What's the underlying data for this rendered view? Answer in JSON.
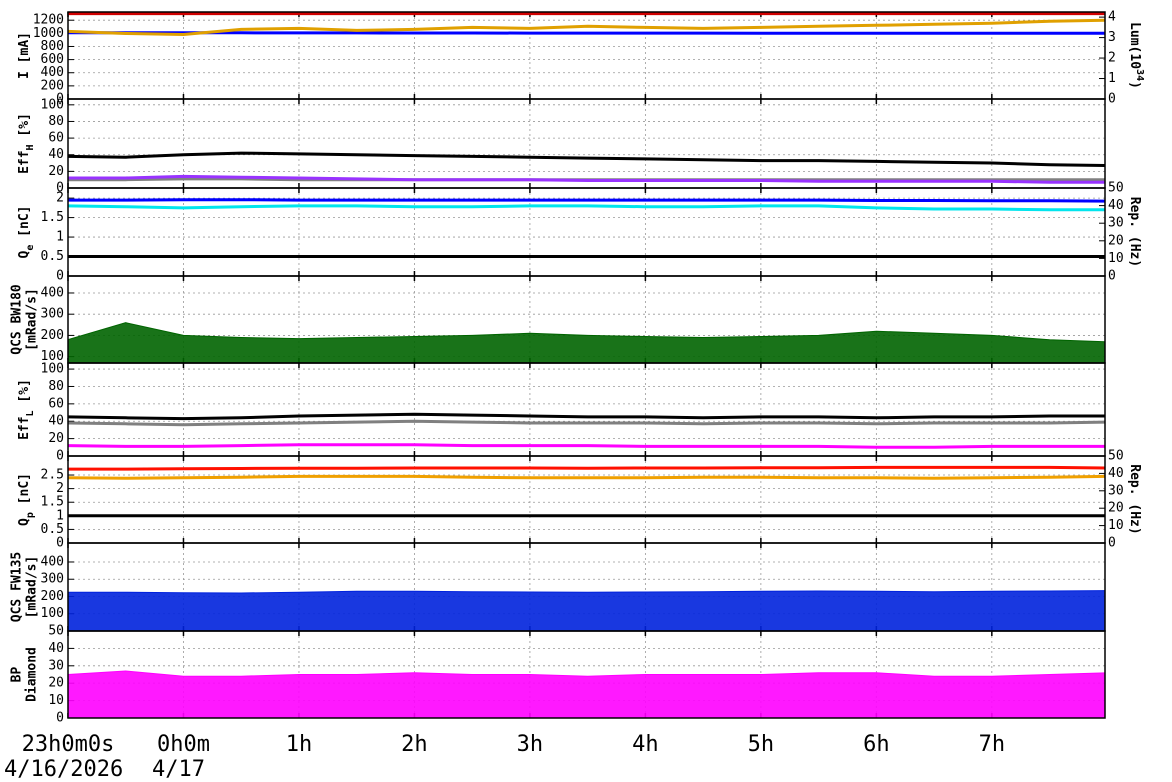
{
  "chart_data": [
    {
      "type": "line",
      "ylabel": [
        [
          {
            "text": "I [mA]"
          }
        ]
      ],
      "y2label": [
        [
          {
            "text": "Lum(10"
          },
          {
            "text": "34",
            "shift": "super"
          },
          {
            "text": ")"
          }
        ]
      ],
      "x": [
        0,
        0.5,
        1,
        1.5,
        2,
        2.5,
        3,
        3.5,
        4,
        4.5,
        5,
        5.5,
        6,
        6.5,
        7,
        7.5,
        8,
        8.5,
        9
      ],
      "xlim": [
        0,
        8.98
      ],
      "xticks": [
        0,
        1,
        2,
        3,
        4,
        5,
        6,
        7,
        8
      ],
      "ylim": [
        0,
        1325
      ],
      "yticks": [
        0,
        200,
        400,
        600,
        800,
        1000,
        1200
      ],
      "y2lim": [
        0,
        4.25
      ],
      "y2ticks": [
        0,
        1,
        2,
        3,
        4
      ],
      "grid": true,
      "series": [
        {
          "color": "#d00000",
          "values": [
            1300,
            1300,
            1300,
            1300,
            1300,
            1300,
            1300,
            1300,
            1300,
            1300,
            1300,
            1300,
            1300,
            1300,
            1300,
            1300,
            1300,
            1300,
            1300
          ]
        },
        {
          "color": "#0000ff",
          "values": [
            1010,
            1010,
            1008,
            1008,
            1006,
            1006,
            1005,
            1005,
            1004,
            1004,
            1003,
            1003,
            1002,
            1002,
            1001,
            1001,
            1000,
            1000,
            1000
          ]
        },
        {
          "color": "#e0a000",
          "axis": "y2",
          "values": [
            3.3,
            3.2,
            3.15,
            3.4,
            3.45,
            3.35,
            3.4,
            3.5,
            3.45,
            3.55,
            3.5,
            3.45,
            3.5,
            3.55,
            3.6,
            3.65,
            3.7,
            3.8,
            3.85
          ]
        }
      ]
    },
    {
      "type": "line",
      "ylabel": [
        [
          {
            "text": "Eff"
          },
          {
            "text": "H",
            "shift": "sub"
          },
          {
            "text": " [%]"
          }
        ]
      ],
      "x": [
        0,
        0.5,
        1,
        1.5,
        2,
        2.5,
        3,
        3.5,
        4,
        4.5,
        5,
        5.5,
        6,
        6.5,
        7,
        7.5,
        8,
        8.5,
        9
      ],
      "xlim": [
        0,
        8.98
      ],
      "xticks": [
        0,
        1,
        2,
        3,
        4,
        5,
        6,
        7,
        8
      ],
      "ylim": [
        0,
        107
      ],
      "yticks": [
        0,
        20,
        40,
        60,
        80,
        100
      ],
      "grid": true,
      "series": [
        {
          "color": "#000000",
          "values": [
            38,
            37,
            40,
            42,
            41,
            40,
            39,
            38,
            37,
            36,
            35,
            34,
            33,
            33,
            32,
            31,
            30,
            28,
            27
          ]
        },
        {
          "color": "#808080",
          "values": [
            10,
            10,
            11,
            11,
            10,
            10,
            10,
            10,
            10,
            10,
            10,
            10,
            10,
            10,
            10,
            10,
            10,
            10,
            10
          ]
        },
        {
          "color": "#9933ff",
          "values": [
            12,
            12,
            14,
            13,
            12,
            11,
            10,
            10,
            10,
            9,
            9,
            9,
            9,
            8,
            8,
            8,
            8,
            7,
            7
          ]
        }
      ]
    },
    {
      "type": "line",
      "ylabel": [
        [
          {
            "text": "Q"
          },
          {
            "text": "e",
            "shift": "sub"
          },
          {
            "text": " [nC]"
          }
        ]
      ],
      "y2label": [
        [
          {
            "text": "Rep. (Hz)"
          }
        ]
      ],
      "x": [
        0,
        0.5,
        1,
        1.5,
        2,
        2.5,
        3,
        3.5,
        4,
        4.5,
        5,
        5.5,
        6,
        6.5,
        7,
        7.5,
        8,
        8.5,
        9
      ],
      "xlim": [
        0,
        8.98
      ],
      "xticks": [
        0,
        1,
        2,
        3,
        4,
        5,
        6,
        7,
        8
      ],
      "ylim": [
        0,
        2.26
      ],
      "yticks": [
        0,
        0.5,
        1,
        1.5,
        2
      ],
      "y2lim": [
        0,
        50
      ],
      "y2ticks": [
        0,
        10,
        20,
        30,
        40,
        50
      ],
      "grid": true,
      "series": [
        {
          "color": "#000000",
          "values": [
            0.5,
            0.5,
            0.5,
            0.5,
            0.5,
            0.5,
            0.5,
            0.5,
            0.5,
            0.5,
            0.5,
            0.5,
            0.5,
            0.5,
            0.5,
            0.5,
            0.5,
            0.5,
            0.5
          ]
        },
        {
          "color": "#00e5ee",
          "values": [
            1.8,
            1.78,
            1.75,
            1.78,
            1.8,
            1.8,
            1.78,
            1.78,
            1.8,
            1.8,
            1.78,
            1.78,
            1.8,
            1.8,
            1.75,
            1.72,
            1.72,
            1.7,
            1.7
          ]
        },
        {
          "color": "#0000ff",
          "values": [
            1.95,
            1.95,
            1.96,
            1.96,
            1.95,
            1.95,
            1.95,
            1.95,
            1.95,
            1.95,
            1.95,
            1.95,
            1.95,
            1.95,
            1.94,
            1.94,
            1.93,
            1.93,
            1.92
          ]
        }
      ]
    },
    {
      "type": "area",
      "ylabel": [
        [
          {
            "text": "QCS BW180"
          }
        ],
        [
          {
            "text": "[mRad/s]"
          }
        ]
      ],
      "x": [
        0,
        0.5,
        1,
        1.5,
        2,
        2.5,
        3,
        3.5,
        4,
        4.5,
        5,
        5.5,
        6,
        6.5,
        7,
        7.5,
        8,
        8.5,
        9
      ],
      "xlim": [
        0,
        8.98
      ],
      "xticks": [
        0,
        1,
        2,
        3,
        4,
        5,
        6,
        7,
        8
      ],
      "ylim": [
        70,
        480
      ],
      "yticks": [
        100,
        200,
        300,
        400
      ],
      "grid": true,
      "series": [
        {
          "color": "#006400",
          "values": [
            180,
            260,
            200,
            190,
            185,
            190,
            195,
            200,
            210,
            200,
            195,
            190,
            195,
            200,
            220,
            210,
            200,
            180,
            170
          ]
        }
      ]
    },
    {
      "type": "line",
      "ylabel": [
        [
          {
            "text": "Eff"
          },
          {
            "text": "L",
            "shift": "sub"
          },
          {
            "text": " [%]"
          }
        ]
      ],
      "x": [
        0,
        0.5,
        1,
        1.5,
        2,
        2.5,
        3,
        3.5,
        4,
        4.5,
        5,
        5.5,
        6,
        6.5,
        7,
        7.5,
        8,
        8.5,
        9
      ],
      "xlim": [
        0,
        8.98
      ],
      "xticks": [
        0,
        1,
        2,
        3,
        4,
        5,
        6,
        7,
        8
      ],
      "ylim": [
        0,
        107
      ],
      "yticks": [
        0,
        20,
        40,
        60,
        80,
        100
      ],
      "grid": true,
      "series": [
        {
          "color": "#000000",
          "values": [
            45,
            44,
            43,
            44,
            46,
            47,
            48,
            47,
            46,
            45,
            45,
            44,
            45,
            45,
            44,
            45,
            45,
            46,
            46
          ]
        },
        {
          "color": "#808080",
          "values": [
            38,
            37,
            36,
            37,
            38,
            39,
            40,
            39,
            38,
            38,
            38,
            37,
            38,
            38,
            37,
            38,
            38,
            38,
            39
          ]
        },
        {
          "color": "#ff00ff",
          "values": [
            12,
            11,
            11,
            12,
            13,
            13,
            13,
            12,
            12,
            12,
            11,
            11,
            11,
            11,
            10,
            10,
            11,
            11,
            11
          ]
        }
      ]
    },
    {
      "type": "line",
      "ylabel": [
        [
          {
            "text": "Q"
          },
          {
            "text": "p",
            "shift": "sub"
          },
          {
            "text": " [nC]"
          }
        ]
      ],
      "y2label": [
        [
          {
            "text": "Rep. (Hz)"
          }
        ]
      ],
      "x": [
        0,
        0.5,
        1,
        1.5,
        2,
        2.5,
        3,
        3.5,
        4,
        4.5,
        5,
        5.5,
        6,
        6.5,
        7,
        7.5,
        8,
        8.5,
        9
      ],
      "xlim": [
        0,
        8.98
      ],
      "xticks": [
        0,
        1,
        2,
        3,
        4,
        5,
        6,
        7,
        8
      ],
      "ylim": [
        0,
        3.2
      ],
      "yticks": [
        0,
        0.5,
        1,
        1.5,
        2,
        2.5
      ],
      "y2lim": [
        0,
        50
      ],
      "y2ticks": [
        0,
        10,
        20,
        30,
        40,
        50
      ],
      "grid": true,
      "series": [
        {
          "color": "#000000",
          "values": [
            1,
            1,
            1,
            1,
            1,
            1,
            1,
            1,
            1,
            1,
            1,
            1,
            1,
            1,
            1,
            1,
            1,
            1,
            1
          ]
        },
        {
          "color": "#f0a000",
          "values": [
            2.4,
            2.38,
            2.4,
            2.42,
            2.45,
            2.45,
            2.45,
            2.42,
            2.4,
            2.4,
            2.4,
            2.42,
            2.42,
            2.4,
            2.4,
            2.38,
            2.4,
            2.42,
            2.45
          ]
        },
        {
          "color": "#ff1000",
          "values": [
            2.72,
            2.72,
            2.73,
            2.74,
            2.75,
            2.75,
            2.76,
            2.76,
            2.76,
            2.75,
            2.76,
            2.76,
            2.77,
            2.77,
            2.78,
            2.78,
            2.78,
            2.78,
            2.76
          ]
        }
      ]
    },
    {
      "type": "area",
      "ylabel": [
        [
          {
            "text": "QCS FW135"
          }
        ],
        [
          {
            "text": "[mRad/s]"
          }
        ]
      ],
      "x": [
        0,
        0.5,
        1,
        1.5,
        2,
        2.5,
        3,
        3.5,
        4,
        4.5,
        5,
        5.5,
        6,
        6.5,
        7,
        7.5,
        8,
        8.5,
        9
      ],
      "xlim": [
        0,
        8.98
      ],
      "xticks": [
        0,
        1,
        2,
        3,
        4,
        5,
        6,
        7,
        8
      ],
      "ylim": [
        0,
        510
      ],
      "yticks": [
        100,
        200,
        300,
        400
      ],
      "grid": true,
      "series": [
        {
          "color": "#0022dd",
          "values": [
            225,
            225,
            222,
            220,
            225,
            230,
            230,
            228,
            226,
            225,
            226,
            228,
            230,
            232,
            230,
            228,
            230,
            232,
            234
          ]
        }
      ]
    },
    {
      "type": "area",
      "ylabel": [
        [
          {
            "text": "BP"
          }
        ],
        [
          {
            "text": "Diamond"
          }
        ]
      ],
      "x": [
        0,
        0.5,
        1,
        1.5,
        2,
        2.5,
        3,
        3.5,
        4,
        4.5,
        5,
        5.5,
        6,
        6.5,
        7,
        7.5,
        8,
        8.5,
        9
      ],
      "xlim": [
        0,
        8.98
      ],
      "xticks": [
        {
          "value": 0,
          "label": "23h0m0s"
        },
        {
          "value": 1,
          "label": "0h0m"
        },
        {
          "value": 2,
          "label": "1h"
        },
        {
          "value": 3,
          "label": "2h"
        },
        {
          "value": 4,
          "label": "3h"
        },
        {
          "value": 5,
          "label": "4h"
        },
        {
          "value": 6,
          "label": "5h"
        },
        {
          "value": 7,
          "label": "6h"
        },
        {
          "value": 8,
          "label": "7h"
        }
      ],
      "ylim": [
        0,
        50
      ],
      "yticks": [
        0,
        10,
        20,
        30,
        40,
        50
      ],
      "grid": true,
      "series": [
        {
          "color": "#ff00ff",
          "values": [
            25,
            27,
            24,
            24,
            25,
            25,
            26,
            25,
            25,
            24,
            25,
            25,
            25,
            26,
            26,
            24,
            24,
            25,
            26
          ]
        }
      ]
    }
  ],
  "dates": [
    "4/16/2026",
    "4/17"
  ]
}
